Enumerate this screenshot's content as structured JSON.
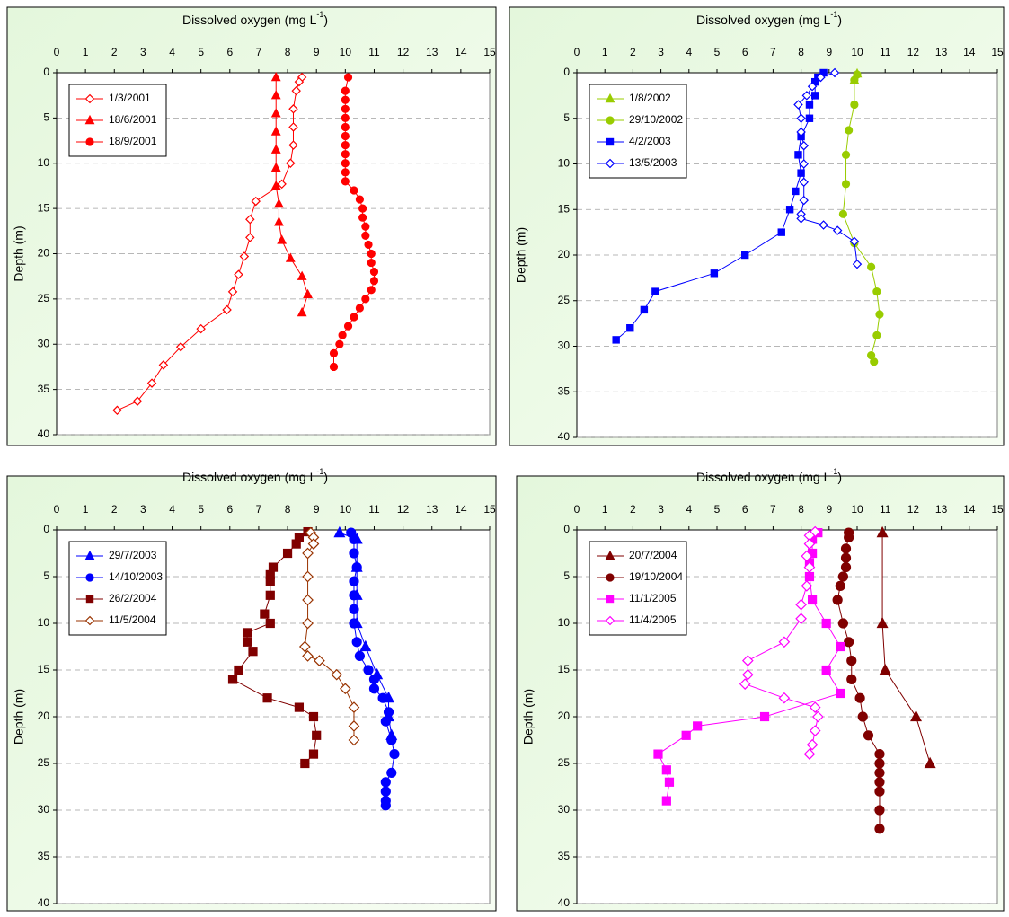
{
  "chart_data": [
    {
      "type": "line",
      "title_parts": [
        "Dissolved oxygen (mg L",
        "-1",
        ")"
      ],
      "y_label": "Depth (m)",
      "xlim": [
        0,
        15
      ],
      "ylim": [
        0,
        40
      ],
      "y_inverted": true,
      "x_axis_position": "top",
      "xticks": [
        0,
        1,
        2,
        3,
        4,
        5,
        6,
        7,
        8,
        9,
        10,
        11,
        12,
        13,
        14,
        15
      ],
      "yticks": [
        0,
        5,
        10,
        15,
        20,
        25,
        30,
        35,
        40
      ],
      "grid": "y",
      "legend": "upper left",
      "series": [
        {
          "name": "1/3/2001",
          "color": "#ff0000",
          "marker": "diamond-open",
          "x": [
            8.5,
            8.4,
            8.3,
            8.2,
            8.2,
            8.2,
            8.1,
            7.8,
            6.9,
            6.7,
            6.7,
            6.5,
            6.3,
            6.1,
            5.9,
            5.0,
            4.3,
            3.7,
            3.3,
            2.8,
            2.1
          ],
          "values": [
            0.5,
            1,
            2,
            4,
            6,
            8,
            10,
            12.3,
            14.2,
            16.2,
            18.2,
            20.3,
            22.3,
            24.2,
            26.2,
            28.3,
            30.3,
            32.3,
            34.3,
            36.3,
            37.3
          ]
        },
        {
          "name": "18/6/2001",
          "color": "#ff0000",
          "marker": "triangle",
          "x": [
            7.6,
            7.6,
            7.6,
            7.6,
            7.6,
            7.6,
            7.6,
            7.7,
            7.7,
            7.8,
            8.1,
            8.5,
            8.7,
            8.5
          ],
          "values": [
            0.5,
            2.5,
            4.5,
            6.5,
            8.5,
            10.5,
            12.5,
            14.5,
            16.5,
            18.5,
            20.5,
            22.5,
            24.5,
            26.5
          ]
        },
        {
          "name": "18/9/2001",
          "color": "#ff0000",
          "marker": "circle",
          "x": [
            10.1,
            10.0,
            10.0,
            10.0,
            10.0,
            10.0,
            10.0,
            10.0,
            10.0,
            10.0,
            10.0,
            10.0,
            10.3,
            10.5,
            10.6,
            10.6,
            10.7,
            10.7,
            10.8,
            10.9,
            10.9,
            11.0,
            11.0,
            10.9,
            10.7,
            10.5,
            10.3,
            10.1,
            9.9,
            9.8,
            9.6,
            9.6
          ],
          "values": [
            0.5,
            2,
            3,
            4,
            5,
            6,
            7,
            8,
            9,
            10,
            11,
            12,
            13,
            14,
            15,
            16,
            17,
            18,
            19,
            20,
            21,
            22,
            23,
            24,
            25,
            26,
            27,
            28,
            29,
            30,
            31,
            32.5
          ]
        }
      ]
    },
    {
      "type": "line",
      "title_parts": [
        "Dissolved oxygen (mg L",
        "-1",
        ")"
      ],
      "y_label": "Depth (m)",
      "xlim": [
        0,
        15
      ],
      "ylim": [
        0,
        40
      ],
      "y_inverted": true,
      "x_axis_position": "top",
      "xticks": [
        0,
        1,
        2,
        3,
        4,
        5,
        6,
        7,
        8,
        9,
        10,
        11,
        12,
        13,
        14,
        15
      ],
      "yticks": [
        0,
        5,
        10,
        15,
        20,
        25,
        30,
        35,
        40
      ],
      "grid": "y",
      "legend": "upper left",
      "series": [
        {
          "name": "1/8/2002",
          "color": "#99cc00",
          "marker": "triangle",
          "x": [
            10.0,
            9.9
          ],
          "values": [
            0.1,
            0.8
          ]
        },
        {
          "name": "29/10/2002",
          "color": "#99cc00",
          "marker": "circle",
          "x": [
            10.0,
            9.9,
            9.9,
            9.7,
            9.6,
            9.6,
            9.5,
            9.9,
            10.5,
            10.7,
            10.8,
            10.7,
            10.5,
            10.6
          ],
          "values": [
            0.2,
            0.8,
            3.5,
            6.3,
            9.0,
            12.2,
            15.5,
            18.7,
            21.3,
            24.0,
            26.5,
            28.8,
            31.0,
            31.7
          ]
        },
        {
          "name": "4/2/2003",
          "color": "#0000ff",
          "marker": "square",
          "x": [
            8.8,
            8.6,
            8.5,
            8.5,
            8.3,
            8.3,
            8.0,
            7.9,
            8.0,
            7.8,
            7.6,
            7.3,
            6.0,
            4.9,
            2.8,
            2.4,
            1.9,
            1.4
          ],
          "values": [
            0,
            0.5,
            1,
            2.5,
            3.5,
            5,
            7,
            9,
            11,
            13,
            15,
            17.5,
            20,
            22,
            24,
            26,
            28,
            29.3
          ]
        },
        {
          "name": "13/5/2003",
          "color": "#0000ff",
          "marker": "diamond-open",
          "x": [
            9.2,
            8.7,
            8.4,
            8.2,
            7.9,
            8.0,
            8.0,
            8.1,
            8.1,
            8.1,
            8.1,
            8.0,
            8.0,
            8.8,
            9.3,
            9.9,
            10.0
          ],
          "values": [
            0,
            0.5,
            1.5,
            2.5,
            3.5,
            5,
            6.5,
            8,
            10,
            12,
            14,
            15.5,
            16,
            16.7,
            17.3,
            18.5,
            21
          ]
        }
      ]
    },
    {
      "type": "line",
      "title_parts": [
        "Dissolved oxygen (mg L",
        "-1",
        ")"
      ],
      "y_label": "Depth (m)",
      "xlim": [
        0,
        15
      ],
      "ylim": [
        0,
        40
      ],
      "y_inverted": true,
      "x_axis_position": "top",
      "xticks": [
        0,
        1,
        2,
        3,
        4,
        5,
        6,
        7,
        8,
        9,
        10,
        11,
        12,
        13,
        14,
        15
      ],
      "yticks": [
        0,
        5,
        10,
        15,
        20,
        25,
        30,
        35,
        40
      ],
      "grid": "y",
      "legend": "upper left",
      "series": [
        {
          "name": "29/7/2003",
          "color": "#0000ff",
          "marker": "triangle",
          "x": [
            9.8,
            10.4,
            10.4,
            10.4,
            10.4,
            10.7,
            11.1,
            11.5,
            11.5,
            11.6
          ],
          "values": [
            0.3,
            1,
            4,
            7,
            10,
            12.5,
            15.5,
            18,
            20,
            22
          ]
        },
        {
          "name": "14/10/2003",
          "color": "#0000ff",
          "marker": "circle",
          "x": [
            10.2,
            10.3,
            10.3,
            10.4,
            10.3,
            10.3,
            10.3,
            10.3,
            10.4,
            10.5,
            10.8,
            11.0,
            11.0,
            11.3,
            11.5,
            11.4,
            11.6,
            11.7,
            11.6,
            11.4,
            11.4,
            11.4,
            11.4
          ],
          "values": [
            0.3,
            1,
            2.5,
            4,
            5.5,
            7,
            8.5,
            10,
            12,
            13.5,
            15,
            16,
            17,
            18,
            19.5,
            20.5,
            22.5,
            24,
            26,
            27,
            28,
            29,
            29.5
          ]
        },
        {
          "name": "26/2/2004",
          "color": "#800000",
          "marker": "square",
          "x": [
            8.7,
            8.4,
            8.3,
            8.0,
            7.5,
            7.4,
            7.4,
            7.4,
            7.2,
            7.4,
            6.6,
            6.6,
            6.8,
            6.3,
            6.1,
            7.3,
            8.4,
            8.9,
            9.0,
            8.9,
            8.6
          ],
          "values": [
            0.2,
            0.8,
            1.5,
            2.5,
            4,
            4.8,
            5.5,
            7,
            9,
            10,
            11,
            12,
            13,
            15,
            16,
            18,
            19,
            20,
            22,
            24,
            25
          ]
        },
        {
          "name": "11/5/2004",
          "color": "#993300",
          "marker": "diamond-open",
          "x": [
            8.8,
            8.9,
            8.9,
            8.7,
            8.7,
            8.7,
            8.7,
            8.6,
            8.7,
            9.1,
            9.7,
            10.0,
            10.3,
            10.3,
            10.3
          ],
          "values": [
            0.3,
            0.8,
            1.5,
            2.5,
            5,
            7.5,
            10,
            12.5,
            13.5,
            14,
            15.5,
            17,
            19,
            21,
            22.5
          ]
        }
      ]
    },
    {
      "type": "line",
      "title_parts": [
        "Dissolved oxygen (mg L",
        "-1",
        ")"
      ],
      "y_label": "Depth (m)",
      "xlim": [
        0,
        15
      ],
      "ylim": [
        0,
        40
      ],
      "y_inverted": true,
      "x_axis_position": "top",
      "xticks": [
        0,
        1,
        2,
        3,
        4,
        5,
        6,
        7,
        8,
        9,
        10,
        11,
        12,
        13,
        14,
        15
      ],
      "yticks": [
        0,
        5,
        10,
        15,
        20,
        25,
        30,
        35,
        40
      ],
      "grid": "y",
      "legend": "upper left",
      "series": [
        {
          "name": "20/7/2004",
          "color": "#800000",
          "marker": "triangle",
          "x": [
            10.9,
            10.9,
            11.0,
            12.1,
            12.6
          ],
          "values": [
            0.3,
            10,
            15,
            20,
            25
          ]
        },
        {
          "name": "19/10/2004",
          "color": "#800000",
          "marker": "circle",
          "x": [
            9.7,
            9.7,
            9.6,
            9.6,
            9.6,
            9.5,
            9.4,
            9.3,
            9.5,
            9.7,
            9.8,
            9.8,
            10.1,
            10.2,
            10.4,
            10.8,
            10.8,
            10.8,
            10.8,
            10.8,
            10.8,
            10.8
          ],
          "values": [
            0.3,
            0.8,
            2,
            3,
            4,
            5,
            6,
            7.5,
            10,
            12,
            14,
            16,
            18,
            20,
            22,
            24,
            25,
            26,
            27,
            28,
            30,
            32
          ]
        },
        {
          "name": "11/1/2005",
          "color": "#ff00ff",
          "marker": "square",
          "x": [
            8.6,
            8.4,
            8.4,
            8.3,
            8.3,
            8.4,
            8.9,
            9.4,
            8.9,
            9.4,
            6.7,
            4.3,
            3.9,
            2.9,
            3.2,
            3.3,
            3.2
          ],
          "values": [
            0.3,
            1,
            2.5,
            3.5,
            5,
            7.5,
            10,
            12.5,
            15,
            17.5,
            20,
            21,
            22,
            24,
            25.7,
            27,
            29
          ]
        },
        {
          "name": "11/4/2005",
          "color": "#ff00ff",
          "marker": "diamond-open",
          "x": [
            8.5,
            8.3,
            8.3,
            8.2,
            8.3,
            8.2,
            8.0,
            8.0,
            7.4,
            6.1,
            6.1,
            6.0,
            7.4,
            8.5,
            8.6,
            8.5,
            8.4,
            8.3
          ],
          "values": [
            0.2,
            0.6,
            1.5,
            2.8,
            4,
            6,
            8,
            9.5,
            12,
            14,
            15.5,
            16.5,
            18,
            19,
            20,
            21.5,
            23,
            24
          ]
        }
      ]
    }
  ]
}
